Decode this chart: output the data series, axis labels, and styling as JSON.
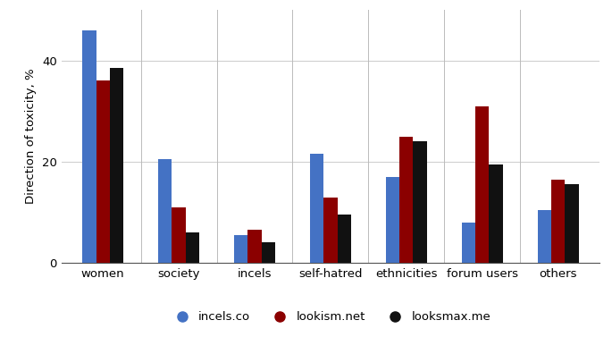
{
  "categories": [
    "women",
    "society",
    "incels",
    "self-hatred",
    "ethnicities",
    "forum users",
    "others"
  ],
  "series": {
    "incels.co": [
      46,
      20.5,
      5.5,
      21.5,
      17,
      8,
      10.5
    ],
    "lookism.net": [
      36,
      11,
      6.5,
      13,
      25,
      31,
      16.5
    ],
    "looksmax.me": [
      38.5,
      6,
      4,
      9.5,
      24,
      19.5,
      15.5
    ]
  },
  "colors": {
    "incels.co": "#4472C4",
    "lookism.net": "#8B0000",
    "looksmax.me": "#111111"
  },
  "ylabel": "Direction of toxicity, %",
  "ylim": [
    0,
    50
  ],
  "yticks": [
    0,
    20,
    40
  ],
  "background_color": "#ffffff",
  "grid_color": "#d0d0d0",
  "bar_width": 0.18,
  "figsize": [
    6.85,
    3.77
  ],
  "dpi": 100
}
